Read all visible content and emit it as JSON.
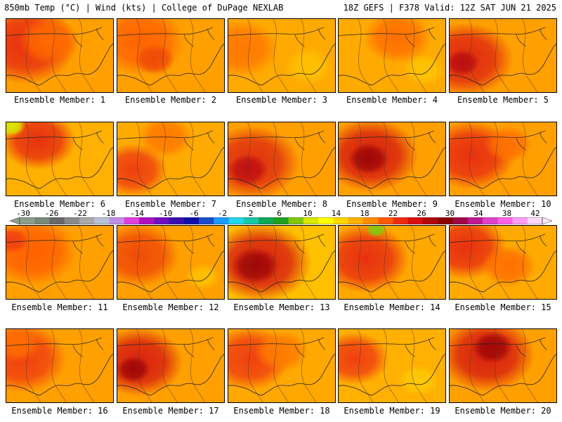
{
  "header": {
    "left": "850mb Temp (°C) | Wind (kts) | College of DuPage NEXLAB",
    "right": "18Z GEFS | F378 Valid: 12Z SAT JUN 21 2025"
  },
  "colorbar": {
    "labels": [
      "-30",
      "-26",
      "-22",
      "-18",
      "-14",
      "-10",
      "-6",
      "-2",
      "2",
      "6",
      "10",
      "14",
      "18",
      "22",
      "26",
      "30",
      "34",
      "38",
      "42"
    ],
    "colors": [
      "#8c9e8c",
      "#7a8a7a",
      "#686868",
      "#8a8a8a",
      "#a9a9a9",
      "#b8c2d6",
      "#c28ee8",
      "#e040e0",
      "#b010c0",
      "#7010c0",
      "#3a10b0",
      "#1010a8",
      "#1c4ccc",
      "#1a9cff",
      "#20d8e8",
      "#18c8a8",
      "#10a858",
      "#20a020",
      "#80c810",
      "#d8e800",
      "#ffff00",
      "#ffd800",
      "#ffb000",
      "#ff8c00",
      "#ff5a00",
      "#f02c10",
      "#d81010",
      "#b00808",
      "#8a0000",
      "#a00848",
      "#c01890",
      "#e040c8",
      "#ff60e8",
      "#ff9cf4",
      "#ffd8ff"
    ]
  },
  "members": [
    {
      "label": "Ensemble Member: 1",
      "base": "#ffa000",
      "blobs": [
        {
          "c": "#e83010",
          "r": 0.3
        },
        {
          "c": "#ff6a00",
          "r": 0.18
        }
      ]
    },
    {
      "label": "Ensemble Member: 2",
      "base": "#ffa000",
      "blobs": [
        {
          "c": "#ff6400",
          "r": 0.26
        },
        {
          "c": "#ee4a08",
          "r": 0.12
        }
      ]
    },
    {
      "label": "Ensemble Member: 3",
      "base": "#ffaa00",
      "blobs": [
        {
          "c": "#ff7800",
          "r": 0.22
        },
        {
          "c": "#ffc000",
          "r": 0.14
        }
      ]
    },
    {
      "label": "Ensemble Member: 4",
      "base": "#ffaa00",
      "blobs": [
        {
          "c": "#ff7000",
          "r": 0.2
        },
        {
          "c": "#ffc400",
          "r": 0.12
        }
      ]
    },
    {
      "label": "Ensemble Member: 5",
      "base": "#ffa000",
      "blobs": [
        {
          "c": "#e02a10",
          "r": 0.28
        },
        {
          "c": "#b81010",
          "r": 0.1
        }
      ]
    },
    {
      "label": "Ensemble Member: 6",
      "base": "#ffb000",
      "blobs": [
        {
          "c": "#e83010",
          "r": 0.22
        },
        {
          "c": "#d8e800",
          "r": 0.08
        }
      ]
    },
    {
      "label": "Ensemble Member: 7",
      "base": "#ffaa00",
      "blobs": [
        {
          "c": "#ee4010",
          "r": 0.2
        },
        {
          "c": "#ff7a00",
          "r": 0.16
        }
      ]
    },
    {
      "label": "Ensemble Member: 8",
      "base": "#ffa000",
      "blobs": [
        {
          "c": "#e03010",
          "r": 0.28
        },
        {
          "c": "#c01010",
          "r": 0.12
        }
      ]
    },
    {
      "label": "Ensemble Member: 9",
      "base": "#ffa000",
      "blobs": [
        {
          "c": "#d82010",
          "r": 0.28
        },
        {
          "c": "#a00808",
          "r": 0.12
        }
      ]
    },
    {
      "label": "Ensemble Member: 10",
      "base": "#ffa000",
      "blobs": [
        {
          "c": "#e83010",
          "r": 0.26
        },
        {
          "c": "#ff7000",
          "r": 0.14
        }
      ]
    },
    {
      "label": "Ensemble Member: 11",
      "base": "#ffa000",
      "blobs": [
        {
          "c": "#ff6000",
          "r": 0.26
        },
        {
          "c": "#f04010",
          "r": 0.1
        }
      ]
    },
    {
      "label": "Ensemble Member: 12",
      "base": "#ffa000",
      "blobs": [
        {
          "c": "#f04c08",
          "r": 0.24
        },
        {
          "c": "#ffc000",
          "r": 0.1
        }
      ]
    },
    {
      "label": "Ensemble Member: 13",
      "base": "#ffc000",
      "blobs": [
        {
          "c": "#d82010",
          "r": 0.3
        },
        {
          "c": "#a00808",
          "r": 0.14
        }
      ]
    },
    {
      "label": "Ensemble Member: 14",
      "base": "#ffa800",
      "blobs": [
        {
          "c": "#e83010",
          "r": 0.26
        },
        {
          "c": "#80c810",
          "r": 0.06
        }
      ]
    },
    {
      "label": "Ensemble Member: 15",
      "base": "#ffaa00",
      "blobs": [
        {
          "c": "#e83010",
          "r": 0.24
        },
        {
          "c": "#ff7000",
          "r": 0.16
        }
      ]
    },
    {
      "label": "Ensemble Member: 16",
      "base": "#ffa000",
      "blobs": [
        {
          "c": "#f04010",
          "r": 0.26
        },
        {
          "c": "#ff6c00",
          "r": 0.14
        }
      ]
    },
    {
      "label": "Ensemble Member: 17",
      "base": "#ffa000",
      "blobs": [
        {
          "c": "#d82010",
          "r": 0.26
        },
        {
          "c": "#a00808",
          "r": 0.1
        }
      ]
    },
    {
      "label": "Ensemble Member: 18",
      "base": "#ffa800",
      "blobs": [
        {
          "c": "#f04010",
          "r": 0.24
        },
        {
          "c": "#ff7c00",
          "r": 0.16
        }
      ]
    },
    {
      "label": "Ensemble Member: 19",
      "base": "#ffb000",
      "blobs": [
        {
          "c": "#f04010",
          "r": 0.2
        },
        {
          "c": "#ffc800",
          "r": 0.12
        }
      ]
    },
    {
      "label": "Ensemble Member: 20",
      "base": "#ffa000",
      "blobs": [
        {
          "c": "#d82010",
          "r": 0.28
        },
        {
          "c": "#a00808",
          "r": 0.12
        }
      ]
    }
  ]
}
